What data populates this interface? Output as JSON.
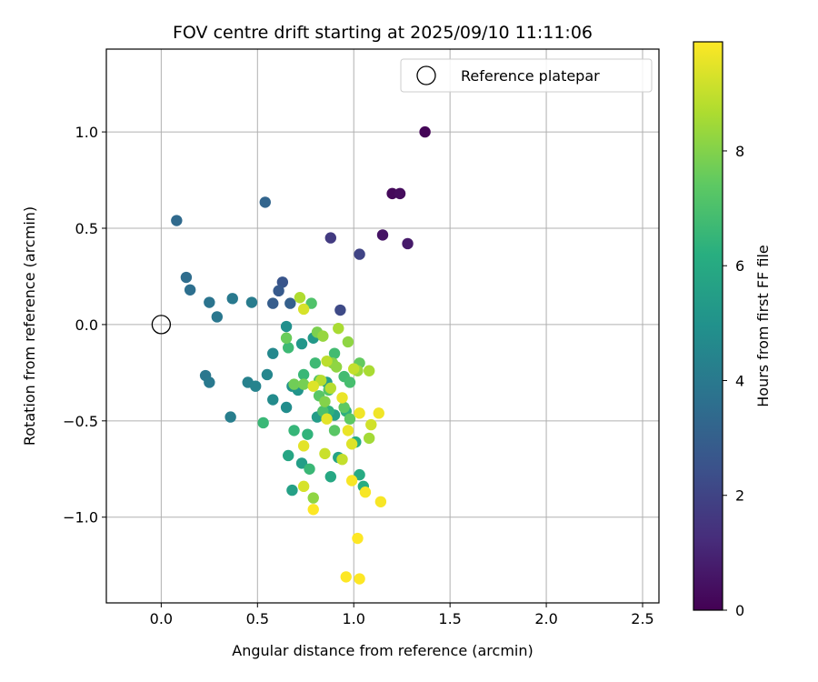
{
  "chart_data": {
    "type": "scatter",
    "title": "FOV centre drift starting at 2025/09/10 11:11:06",
    "xlabel": "Angular distance from reference (arcmin)",
    "ylabel": "Rotation from reference (arcmin)",
    "xlim": [
      -0.285,
      2.585
    ],
    "ylim": [
      -1.445,
      1.43
    ],
    "x_ticks": [
      0.0,
      0.5,
      1.0,
      1.5,
      2.0,
      2.5
    ],
    "x_tick_labels": [
      "0.0",
      "0.5",
      "1.0",
      "1.5",
      "2.0",
      "2.5"
    ],
    "y_ticks": [
      -1.0,
      -0.5,
      0.0,
      0.5,
      1.0
    ],
    "y_tick_labels": [
      "−1.0",
      "−0.5",
      "0.0",
      "0.5",
      "1.0"
    ],
    "grid": true,
    "legend": {
      "position": "top-right",
      "label": "Reference platepar"
    },
    "reference_point": {
      "x": 0.0,
      "y": 0.0
    },
    "colorbar": {
      "label": "Hours from first FF file",
      "min": 0,
      "max": 9.9,
      "ticks": [
        0,
        2,
        4,
        6,
        8
      ],
      "colormap": "viridis"
    },
    "points": [
      {
        "x": 1.37,
        "y": 1.0,
        "c": 0.1
      },
      {
        "x": 1.2,
        "y": 0.68,
        "c": 0.2
      },
      {
        "x": 1.24,
        "y": 0.68,
        "c": 0.3
      },
      {
        "x": 1.15,
        "y": 0.465,
        "c": 0.5
      },
      {
        "x": 1.28,
        "y": 0.42,
        "c": 0.7
      },
      {
        "x": 0.88,
        "y": 0.45,
        "c": 1.7
      },
      {
        "x": 1.03,
        "y": 0.365,
        "c": 2.0
      },
      {
        "x": 0.93,
        "y": 0.075,
        "c": 2.2
      },
      {
        "x": 0.63,
        "y": 0.22,
        "c": 2.6
      },
      {
        "x": 0.61,
        "y": 0.175,
        "c": 2.8
      },
      {
        "x": 0.58,
        "y": 0.11,
        "c": 2.9
      },
      {
        "x": 0.67,
        "y": 0.11,
        "c": 3.0
      },
      {
        "x": 0.54,
        "y": 0.635,
        "c": 3.2
      },
      {
        "x": 0.08,
        "y": 0.54,
        "c": 3.4
      },
      {
        "x": 0.13,
        "y": 0.245,
        "c": 3.5
      },
      {
        "x": 0.15,
        "y": 0.18,
        "c": 3.6
      },
      {
        "x": 0.25,
        "y": 0.115,
        "c": 3.8
      },
      {
        "x": 0.29,
        "y": 0.04,
        "c": 3.9
      },
      {
        "x": 0.37,
        "y": 0.135,
        "c": 4.0
      },
      {
        "x": 0.47,
        "y": 0.115,
        "c": 4.1
      },
      {
        "x": 0.23,
        "y": -0.265,
        "c": 3.9
      },
      {
        "x": 0.25,
        "y": -0.3,
        "c": 4.0
      },
      {
        "x": 0.36,
        "y": -0.48,
        "c": 4.2
      },
      {
        "x": 0.45,
        "y": -0.3,
        "c": 4.3
      },
      {
        "x": 0.49,
        "y": -0.32,
        "c": 4.4
      },
      {
        "x": 0.55,
        "y": -0.26,
        "c": 4.5
      },
      {
        "x": 0.58,
        "y": -0.15,
        "c": 4.6
      },
      {
        "x": 0.58,
        "y": -0.39,
        "c": 4.7
      },
      {
        "x": 0.65,
        "y": -0.43,
        "c": 4.8
      },
      {
        "x": 0.65,
        "y": -0.01,
        "c": 4.9
      },
      {
        "x": 0.68,
        "y": -0.32,
        "c": 5.0
      },
      {
        "x": 0.71,
        "y": -0.34,
        "c": 5.1
      },
      {
        "x": 0.73,
        "y": -0.1,
        "c": 5.2
      },
      {
        "x": 0.79,
        "y": -0.07,
        "c": 5.3
      },
      {
        "x": 0.81,
        "y": -0.48,
        "c": 5.4
      },
      {
        "x": 0.86,
        "y": -0.3,
        "c": 5.5
      },
      {
        "x": 0.9,
        "y": -0.47,
        "c": 5.6
      },
      {
        "x": 0.92,
        "y": -0.69,
        "c": 5.7
      },
      {
        "x": 0.66,
        "y": -0.68,
        "c": 5.8
      },
      {
        "x": 0.68,
        "y": -0.86,
        "c": 5.6
      },
      {
        "x": 0.73,
        "y": -0.72,
        "c": 5.5
      },
      {
        "x": 0.88,
        "y": -0.79,
        "c": 5.9
      },
      {
        "x": 1.03,
        "y": -0.78,
        "c": 6.0
      },
      {
        "x": 1.05,
        "y": -0.84,
        "c": 6.1
      },
      {
        "x": 1.01,
        "y": -0.61,
        "c": 6.2
      },
      {
        "x": 0.96,
        "y": -0.45,
        "c": 6.3
      },
      {
        "x": 0.87,
        "y": -0.45,
        "c": 6.3
      },
      {
        "x": 0.76,
        "y": -0.57,
        "c": 6.4
      },
      {
        "x": 0.69,
        "y": -0.55,
        "c": 6.5
      },
      {
        "x": 0.74,
        "y": -0.26,
        "c": 6.6
      },
      {
        "x": 0.77,
        "y": -0.75,
        "c": 6.6
      },
      {
        "x": 0.53,
        "y": -0.51,
        "c": 6.6
      },
      {
        "x": 0.66,
        "y": -0.12,
        "c": 6.7
      },
      {
        "x": 0.8,
        "y": -0.2,
        "c": 6.7
      },
      {
        "x": 0.9,
        "y": -0.15,
        "c": 6.8
      },
      {
        "x": 0.95,
        "y": -0.27,
        "c": 6.8
      },
      {
        "x": 0.98,
        "y": -0.3,
        "c": 6.9
      },
      {
        "x": 0.84,
        "y": -0.45,
        "c": 7.0
      },
      {
        "x": 0.78,
        "y": 0.11,
        "c": 7.1
      },
      {
        "x": 0.82,
        "y": -0.29,
        "c": 7.2
      },
      {
        "x": 0.87,
        "y": -0.34,
        "c": 7.2
      },
      {
        "x": 0.82,
        "y": -0.37,
        "c": 7.3
      },
      {
        "x": 0.9,
        "y": -0.55,
        "c": 7.3
      },
      {
        "x": 0.95,
        "y": -0.43,
        "c": 7.4
      },
      {
        "x": 0.98,
        "y": -0.49,
        "c": 7.4
      },
      {
        "x": 1.03,
        "y": -0.2,
        "c": 7.5
      },
      {
        "x": 0.65,
        "y": -0.07,
        "c": 7.6
      },
      {
        "x": 0.69,
        "y": -0.31,
        "c": 7.7
      },
      {
        "x": 0.74,
        "y": -0.31,
        "c": 7.8
      },
      {
        "x": 0.81,
        "y": -0.04,
        "c": 7.9
      },
      {
        "x": 0.85,
        "y": -0.4,
        "c": 8.0
      },
      {
        "x": 0.89,
        "y": -0.2,
        "c": 8.1
      },
      {
        "x": 0.91,
        "y": -0.22,
        "c": 8.2
      },
      {
        "x": 0.97,
        "y": -0.09,
        "c": 8.2
      },
      {
        "x": 0.79,
        "y": -0.9,
        "c": 8.2
      },
      {
        "x": 0.84,
        "y": -0.06,
        "c": 8.3
      },
      {
        "x": 1.02,
        "y": -0.24,
        "c": 8.4
      },
      {
        "x": 1.08,
        "y": -0.59,
        "c": 8.5
      },
      {
        "x": 1.08,
        "y": -0.24,
        "c": 8.6
      },
      {
        "x": 0.92,
        "y": -0.02,
        "c": 8.6
      },
      {
        "x": 0.72,
        "y": 0.14,
        "c": 8.7
      },
      {
        "x": 0.83,
        "y": -0.29,
        "c": 8.8
      },
      {
        "x": 0.88,
        "y": -0.33,
        "c": 8.8
      },
      {
        "x": 0.86,
        "y": -0.19,
        "c": 8.9
      },
      {
        "x": 1.0,
        "y": -0.23,
        "c": 9.0
      },
      {
        "x": 0.94,
        "y": -0.7,
        "c": 9.0
      },
      {
        "x": 0.85,
        "y": -0.67,
        "c": 9.1
      },
      {
        "x": 1.09,
        "y": -0.52,
        "c": 9.2
      },
      {
        "x": 0.74,
        "y": 0.08,
        "c": 9.3
      },
      {
        "x": 0.74,
        "y": -0.84,
        "c": 9.3
      },
      {
        "x": 0.79,
        "y": -0.32,
        "c": 9.4
      },
      {
        "x": 0.99,
        "y": -0.62,
        "c": 9.4
      },
      {
        "x": 0.74,
        "y": -0.63,
        "c": 9.5
      },
      {
        "x": 0.86,
        "y": -0.49,
        "c": 9.5
      },
      {
        "x": 0.97,
        "y": -0.55,
        "c": 9.6
      },
      {
        "x": 0.94,
        "y": -0.38,
        "c": 9.6
      },
      {
        "x": 1.03,
        "y": -0.46,
        "c": 9.7
      },
      {
        "x": 1.13,
        "y": -0.46,
        "c": 9.7
      },
      {
        "x": 1.14,
        "y": -0.92,
        "c": 9.8
      },
      {
        "x": 0.99,
        "y": -0.81,
        "c": 9.8
      },
      {
        "x": 1.06,
        "y": -0.87,
        "c": 9.8
      },
      {
        "x": 0.79,
        "y": -0.96,
        "c": 9.9
      },
      {
        "x": 1.02,
        "y": -1.11,
        "c": 9.9
      },
      {
        "x": 0.96,
        "y": -1.31,
        "c": 9.9
      },
      {
        "x": 1.03,
        "y": -1.32,
        "c": 9.9
      }
    ]
  }
}
